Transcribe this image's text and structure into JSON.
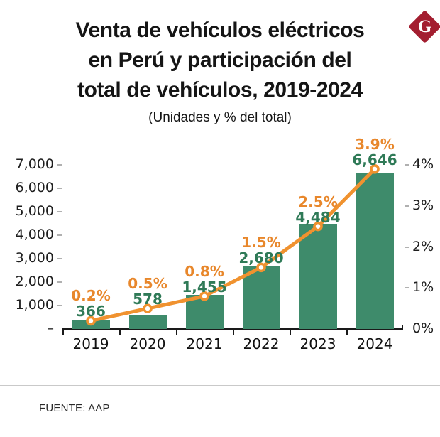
{
  "header": {
    "title_lines": [
      "Venta de vehículos eléctricos",
      "en Perú y participación del",
      "total de vehículos, 2019-2024"
    ],
    "subtitle": "(Unidades y % del total)",
    "logo_letter": "G"
  },
  "footer": {
    "source": "FUENTE: AAP"
  },
  "colors": {
    "bar": "#3E8B6B",
    "units_label": "#2F7A57",
    "line": "#F0922F",
    "pct_label": "#E8872B",
    "axis": "#1a1a1a",
    "tick": "#b0b0b0",
    "title": "#151515",
    "logo_red": "#A31E30"
  },
  "chart_data": {
    "type": "bar",
    "title": "Venta de vehículos eléctricos en Perú y participación del total de vehículos, 2019-2024",
    "subtitle": "(Unidades y % del total)",
    "categories": [
      "2019",
      "2020",
      "2021",
      "2022",
      "2023",
      "2024"
    ],
    "series": [
      {
        "name": "Unidades",
        "type": "bar",
        "axis": "left",
        "values": [
          366,
          578,
          1455,
          2680,
          4484,
          6646
        ],
        "labels": [
          "366",
          "578",
          "1,455",
          "2,680",
          "4,484",
          "6,646"
        ]
      },
      {
        "name": "% del total",
        "type": "line",
        "axis": "right",
        "values": [
          0.2,
          0.5,
          0.8,
          1.5,
          2.5,
          3.9
        ],
        "labels": [
          "0.2%",
          "0.5%",
          "0.8%",
          "1.5%",
          "2.5%",
          "3.9%"
        ]
      }
    ],
    "left_axis": {
      "ticks": [
        "7,000",
        "6,000",
        "5,000",
        "4,000",
        "3,000",
        "2,000",
        "1,000",
        "–"
      ],
      "values": [
        7000,
        6000,
        5000,
        4000,
        3000,
        2000,
        1000,
        0
      ],
      "range": [
        0,
        7000
      ]
    },
    "right_axis": {
      "ticks": [
        "4%",
        "3%",
        "2%",
        "1%",
        "0%"
      ],
      "values": [
        4,
        3,
        2,
        1,
        0
      ],
      "range": [
        0,
        4
      ]
    },
    "grid": false,
    "legend": false
  }
}
